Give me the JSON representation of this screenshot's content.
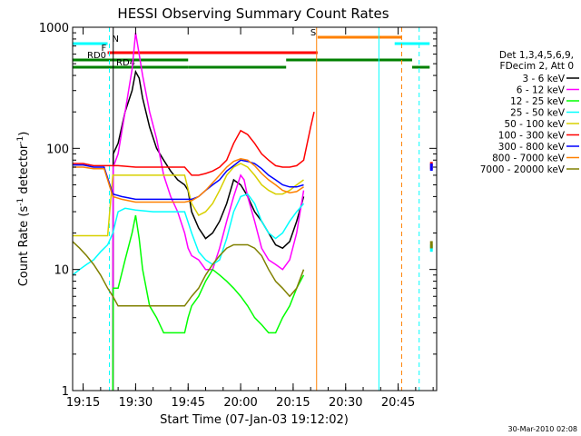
{
  "chart_data": {
    "type": "line",
    "title": "HESSI Observing Summary Count Rates",
    "xlabel": "Start Time (07-Jan-03 19:12:02)",
    "ylabel_main": "Count Rate (s",
    "ylabel_sup1": "-1",
    "ylabel_mid": " detector",
    "ylabel_sup2": "-1",
    "ylabel_end": ")",
    "yscale": "log",
    "ylim": [
      1,
      1000
    ],
    "xlim_minutes": [
      1152,
      1256
    ],
    "x_ticks": [
      {
        "t": 1155,
        "label": "19:15"
      },
      {
        "t": 1170,
        "label": "19:30"
      },
      {
        "t": 1185,
        "label": "19:45"
      },
      {
        "t": 1200,
        "label": "20:00"
      },
      {
        "t": 1215,
        "label": "20:15"
      },
      {
        "t": 1230,
        "label": "20:30"
      },
      {
        "t": 1245,
        "label": "20:45"
      }
    ],
    "y_ticks": [
      {
        "v": 1,
        "label": "1"
      },
      {
        "v": 10,
        "label": "10"
      },
      {
        "v": 100,
        "label": "100"
      },
      {
        "v": 1000,
        "label": "1000"
      }
    ],
    "legend_header": [
      "Det 1,3,4,5,6,9,",
      "FDecim 2, Att 0"
    ],
    "legend_placement": "right",
    "series": [
      {
        "name": "3 - 6 keV",
        "color": "#000000",
        "points": [
          [
            1163.5,
            1
          ],
          [
            1163.6,
            90
          ],
          [
            1165,
            110
          ],
          [
            1167,
            200
          ],
          [
            1169,
            300
          ],
          [
            1170,
            430
          ],
          [
            1171,
            380
          ],
          [
            1172,
            260
          ],
          [
            1174,
            150
          ],
          [
            1176,
            100
          ],
          [
            1178,
            80
          ],
          [
            1180,
            65
          ],
          [
            1182,
            55
          ],
          [
            1184,
            50
          ],
          [
            1185,
            45
          ],
          [
            1186,
            30
          ],
          [
            1188,
            22
          ],
          [
            1190,
            18
          ],
          [
            1192,
            20
          ],
          [
            1194,
            25
          ],
          [
            1196,
            35
          ],
          [
            1198,
            55
          ],
          [
            1200,
            50
          ],
          [
            1201,
            45
          ],
          [
            1202,
            40
          ],
          [
            1204,
            30
          ],
          [
            1206,
            25
          ],
          [
            1208,
            20
          ],
          [
            1210,
            16
          ],
          [
            1212,
            15
          ],
          [
            1214,
            17
          ],
          [
            1216,
            25
          ],
          [
            1218,
            40
          ]
        ]
      },
      {
        "name": "6 - 12 keV",
        "color": "#ff00ff",
        "points": [
          [
            1163.5,
            1
          ],
          [
            1163.6,
            70
          ],
          [
            1165,
            90
          ],
          [
            1167,
            200
          ],
          [
            1169,
            450
          ],
          [
            1170,
            900
          ],
          [
            1171,
            600
          ],
          [
            1172,
            400
          ],
          [
            1174,
            200
          ],
          [
            1176,
            120
          ],
          [
            1178,
            60
          ],
          [
            1180,
            40
          ],
          [
            1182,
            30
          ],
          [
            1184,
            20
          ],
          [
            1185,
            15
          ],
          [
            1186,
            13
          ],
          [
            1188,
            12
          ],
          [
            1190,
            10
          ],
          [
            1192,
            10
          ],
          [
            1194,
            15
          ],
          [
            1196,
            25
          ],
          [
            1198,
            40
          ],
          [
            1200,
            60
          ],
          [
            1201,
            55
          ],
          [
            1202,
            40
          ],
          [
            1204,
            25
          ],
          [
            1206,
            15
          ],
          [
            1208,
            12
          ],
          [
            1210,
            11
          ],
          [
            1212,
            10
          ],
          [
            1214,
            12
          ],
          [
            1216,
            20
          ],
          [
            1218,
            45
          ]
        ]
      },
      {
        "name": "12 - 25 keV",
        "color": "#00ff00",
        "points": [
          [
            1163.5,
            1
          ],
          [
            1163.6,
            7
          ],
          [
            1165,
            7
          ],
          [
            1167,
            12
          ],
          [
            1169,
            20
          ],
          [
            1170,
            28
          ],
          [
            1171,
            18
          ],
          [
            1172,
            10
          ],
          [
            1174,
            5
          ],
          [
            1176,
            4
          ],
          [
            1178,
            3
          ],
          [
            1180,
            3
          ],
          [
            1182,
            3
          ],
          [
            1184,
            3
          ],
          [
            1185,
            4
          ],
          [
            1186,
            5
          ],
          [
            1188,
            6
          ],
          [
            1190,
            8
          ],
          [
            1192,
            10
          ],
          [
            1194,
            9
          ],
          [
            1196,
            8
          ],
          [
            1198,
            7
          ],
          [
            1200,
            6
          ],
          [
            1202,
            5
          ],
          [
            1204,
            4
          ],
          [
            1206,
            3.5
          ],
          [
            1208,
            3
          ],
          [
            1210,
            3
          ],
          [
            1212,
            4
          ],
          [
            1214,
            5
          ],
          [
            1216,
            7
          ],
          [
            1218,
            9
          ]
        ]
      },
      {
        "name": "25 - 50 keV",
        "color": "#00ffff",
        "points": [
          [
            1152,
            9
          ],
          [
            1154,
            10
          ],
          [
            1156,
            11
          ],
          [
            1158,
            12
          ],
          [
            1160,
            14
          ],
          [
            1162,
            16
          ],
          [
            1163.5,
            20
          ],
          [
            1165,
            30
          ],
          [
            1167,
            32
          ],
          [
            1170,
            31
          ],
          [
            1175,
            30
          ],
          [
            1180,
            30
          ],
          [
            1184,
            30
          ],
          [
            1186,
            20
          ],
          [
            1188,
            14
          ],
          [
            1190,
            12
          ],
          [
            1192,
            11
          ],
          [
            1194,
            12
          ],
          [
            1196,
            18
          ],
          [
            1198,
            30
          ],
          [
            1200,
            40
          ],
          [
            1202,
            42
          ],
          [
            1204,
            35
          ],
          [
            1206,
            25
          ],
          [
            1208,
            20
          ],
          [
            1210,
            18
          ],
          [
            1212,
            20
          ],
          [
            1214,
            25
          ],
          [
            1216,
            30
          ],
          [
            1218,
            35
          ]
        ]
      },
      {
        "name": "50 - 100 keV",
        "color": "#d8d000",
        "points": [
          [
            1152,
            19
          ],
          [
            1154,
            19
          ],
          [
            1156,
            19
          ],
          [
            1158,
            19
          ],
          [
            1160,
            19
          ],
          [
            1162,
            19
          ],
          [
            1163.5,
            60
          ],
          [
            1165,
            60
          ],
          [
            1170,
            60
          ],
          [
            1175,
            60
          ],
          [
            1180,
            60
          ],
          [
            1184,
            60
          ],
          [
            1186,
            35
          ],
          [
            1188,
            28
          ],
          [
            1190,
            30
          ],
          [
            1192,
            35
          ],
          [
            1194,
            45
          ],
          [
            1196,
            60
          ],
          [
            1198,
            70
          ],
          [
            1200,
            75
          ],
          [
            1202,
            70
          ],
          [
            1204,
            60
          ],
          [
            1206,
            50
          ],
          [
            1208,
            45
          ],
          [
            1210,
            42
          ],
          [
            1212,
            42
          ],
          [
            1214,
            45
          ],
          [
            1216,
            50
          ],
          [
            1218,
            55
          ]
        ]
      },
      {
        "name": "100 - 300 keV",
        "color": "#ff0000",
        "points": [
          [
            1152,
            75
          ],
          [
            1155,
            75
          ],
          [
            1158,
            72
          ],
          [
            1161,
            72
          ],
          [
            1163.5,
            72
          ],
          [
            1165,
            72
          ],
          [
            1170,
            70
          ],
          [
            1175,
            70
          ],
          [
            1180,
            70
          ],
          [
            1184,
            70
          ],
          [
            1186,
            60
          ],
          [
            1188,
            60
          ],
          [
            1190,
            62
          ],
          [
            1192,
            65
          ],
          [
            1194,
            70
          ],
          [
            1196,
            80
          ],
          [
            1198,
            110
          ],
          [
            1200,
            140
          ],
          [
            1202,
            130
          ],
          [
            1204,
            110
          ],
          [
            1206,
            90
          ],
          [
            1208,
            80
          ],
          [
            1210,
            72
          ],
          [
            1212,
            70
          ],
          [
            1214,
            70
          ],
          [
            1216,
            72
          ],
          [
            1218,
            80
          ],
          [
            1220,
            150
          ],
          [
            1221,
            200
          ]
        ]
      },
      {
        "name": "300 - 800 keV",
        "color": "#0000ff",
        "points": [
          [
            1152,
            73
          ],
          [
            1155,
            73
          ],
          [
            1158,
            70
          ],
          [
            1161,
            70
          ],
          [
            1163.5,
            42
          ],
          [
            1166,
            40
          ],
          [
            1170,
            38
          ],
          [
            1175,
            38
          ],
          [
            1180,
            38
          ],
          [
            1184,
            38
          ],
          [
            1186,
            38
          ],
          [
            1188,
            40
          ],
          [
            1190,
            45
          ],
          [
            1192,
            50
          ],
          [
            1194,
            55
          ],
          [
            1196,
            65
          ],
          [
            1198,
            72
          ],
          [
            1200,
            80
          ],
          [
            1202,
            78
          ],
          [
            1204,
            75
          ],
          [
            1206,
            68
          ],
          [
            1208,
            60
          ],
          [
            1210,
            55
          ],
          [
            1212,
            50
          ],
          [
            1214,
            48
          ],
          [
            1216,
            48
          ],
          [
            1218,
            50
          ]
        ]
      },
      {
        "name": "800 - 7000 keV",
        "color": "#ff8000",
        "points": [
          [
            1152,
            70
          ],
          [
            1155,
            70
          ],
          [
            1158,
            68
          ],
          [
            1161,
            68
          ],
          [
            1163.5,
            40
          ],
          [
            1166,
            38
          ],
          [
            1170,
            36
          ],
          [
            1175,
            36
          ],
          [
            1180,
            36
          ],
          [
            1184,
            36
          ],
          [
            1186,
            37
          ],
          [
            1188,
            40
          ],
          [
            1190,
            45
          ],
          [
            1192,
            52
          ],
          [
            1194,
            60
          ],
          [
            1196,
            70
          ],
          [
            1198,
            78
          ],
          [
            1200,
            82
          ],
          [
            1202,
            80
          ],
          [
            1204,
            72
          ],
          [
            1206,
            62
          ],
          [
            1208,
            55
          ],
          [
            1210,
            50
          ],
          [
            1212,
            45
          ],
          [
            1214,
            43
          ],
          [
            1216,
            44
          ],
          [
            1218,
            48
          ]
        ]
      },
      {
        "name": "7000 - 20000 keV",
        "color": "#808000",
        "points": [
          [
            1152,
            17
          ],
          [
            1154,
            15
          ],
          [
            1156,
            13
          ],
          [
            1158,
            11
          ],
          [
            1160,
            9
          ],
          [
            1162,
            7
          ],
          [
            1163.5,
            6
          ],
          [
            1165,
            5
          ],
          [
            1167,
            5
          ],
          [
            1170,
            5
          ],
          [
            1175,
            5
          ],
          [
            1180,
            5
          ],
          [
            1184,
            5
          ],
          [
            1186,
            6
          ],
          [
            1188,
            7
          ],
          [
            1190,
            9
          ],
          [
            1192,
            11
          ],
          [
            1194,
            13
          ],
          [
            1196,
            15
          ],
          [
            1198,
            16
          ],
          [
            1200,
            16
          ],
          [
            1202,
            16
          ],
          [
            1204,
            15
          ],
          [
            1206,
            13
          ],
          [
            1208,
            10
          ],
          [
            1210,
            8
          ],
          [
            1212,
            7
          ],
          [
            1214,
            6
          ],
          [
            1216,
            7
          ],
          [
            1218,
            10
          ]
        ]
      }
    ],
    "right_edge_points": [
      {
        "color": "#ff0000",
        "t": 1254.5,
        "v": 72
      },
      {
        "color": "#0000ff",
        "t": 1254.5,
        "v": 70
      },
      {
        "color": "#00ffff",
        "t": 1254.5,
        "v": 15
      },
      {
        "color": "#808000",
        "t": 1254.5,
        "v": 16
      }
    ],
    "bars": [
      {
        "label": "N",
        "color": "#00ffff",
        "segments": [
          [
            1152,
            1162
          ],
          [
            1244,
            1254
          ]
        ],
        "level": 0
      },
      {
        "label": "F",
        "color": "#ff0000",
        "segments": [
          [
            1162,
            1222
          ]
        ],
        "level": 1
      },
      {
        "label": "RD0",
        "color": "#008000",
        "segments": [
          [
            1152,
            1185
          ],
          [
            1213,
            1249
          ]
        ],
        "level": 2
      },
      {
        "label": "RD4",
        "color": "#008000",
        "segments": [
          [
            1152,
            1185
          ],
          [
            1185,
            1213
          ],
          [
            1249,
            1254
          ]
        ],
        "level": 3
      },
      {
        "label": "S",
        "color": "#ff8000",
        "segments": [
          [
            1222,
            1246
          ]
        ],
        "level": -1
      }
    ],
    "vlines": [
      {
        "t": 1162.5,
        "color": "#00ffff",
        "dash": true
      },
      {
        "t": 1163.6,
        "color": "#000000",
        "dash": false
      },
      {
        "t": 1221.7,
        "color": "#ff8000",
        "dash": false
      },
      {
        "t": 1239.5,
        "color": "#00ffff",
        "dash": false
      },
      {
        "t": 1246,
        "color": "#ff8000",
        "dash": true
      },
      {
        "t": 1251,
        "color": "#00ffff",
        "dash": true
      }
    ],
    "timestamp": "30-Mar-2010 02:08"
  }
}
